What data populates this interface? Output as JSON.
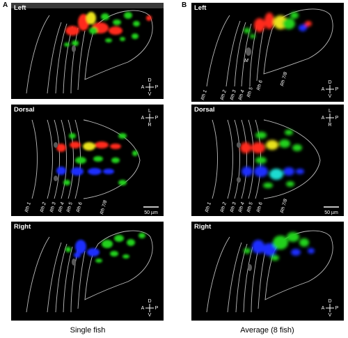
{
  "panels": {
    "A": {
      "letter": "A",
      "caption": "Single fish",
      "views": [
        {
          "label": "Left",
          "compass": {
            "top": "D",
            "bottom": "V",
            "left": "A",
            "right": "P"
          }
        },
        {
          "label": "Dorsal",
          "compass": {
            "top": "L",
            "bottom": "R",
            "left": "A",
            "right": "P"
          },
          "rh_labels": [
            "Rh 1",
            "Rh 2",
            "Rh 3",
            "Rh 4",
            "Rh 5",
            "Rh 6",
            "Rh 7/8"
          ],
          "scalebar": "50 µm"
        },
        {
          "label": "Right",
          "compass": {
            "top": "D",
            "bottom": "V",
            "left": "A",
            "right": "P"
          }
        }
      ]
    },
    "B": {
      "letter": "B",
      "caption": "Average (8 fish)",
      "views": [
        {
          "label": "Left",
          "compass": {
            "top": "D",
            "bottom": "V",
            "left": "A",
            "right": "P"
          },
          "rh_labels": [
            "Rh 1",
            "Rh 2",
            "Rh 3",
            "Rh 4",
            "Rh 5",
            "Rh 6",
            "Rh 7/8"
          ],
          "marker": "M"
        },
        {
          "label": "Dorsal",
          "compass": {
            "top": "L",
            "bottom": "R",
            "left": "A",
            "right": "P"
          },
          "rh_labels": [
            "Rh 1",
            "Rh 2",
            "Rh 3",
            "Rh 4",
            "Rh 5",
            "Rh 6",
            "Rh 7/8"
          ],
          "scalebar": "50 µm"
        },
        {
          "label": "Right",
          "compass": {
            "top": "D",
            "bottom": "V",
            "left": "A",
            "right": "P"
          }
        }
      ]
    }
  },
  "colors": {
    "red": "#ff2a1a",
    "green": "#22d11a",
    "blue": "#1a2dff",
    "yellow": "#e8e21a",
    "outline": "#cfcfcf"
  }
}
